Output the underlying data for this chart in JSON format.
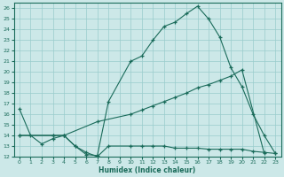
{
  "xlabel": "Humidex (Indice chaleur)",
  "bg_color": "#cce8e8",
  "line_color": "#1a6b5a",
  "grid_color": "#99cccc",
  "xlim": [
    -0.5,
    23.5
  ],
  "ylim": [
    12,
    26.5
  ],
  "xticks": [
    0,
    1,
    2,
    3,
    4,
    5,
    6,
    7,
    8,
    9,
    10,
    11,
    12,
    13,
    14,
    15,
    16,
    17,
    18,
    19,
    20,
    21,
    22,
    23
  ],
  "yticks": [
    12,
    13,
    14,
    15,
    16,
    17,
    18,
    19,
    20,
    21,
    22,
    23,
    24,
    25,
    26
  ],
  "line1_x": [
    0,
    1,
    2,
    3,
    4,
    5,
    6,
    7,
    8,
    10,
    11,
    12,
    13,
    14,
    15,
    16,
    17,
    18,
    19,
    20,
    21,
    22,
    23
  ],
  "line1_y": [
    16.5,
    14.0,
    13.2,
    13.7,
    14.0,
    13.0,
    12.2,
    12.1,
    17.2,
    21.0,
    21.5,
    23.0,
    24.3,
    24.7,
    25.5,
    26.2,
    25.0,
    23.3,
    20.4,
    18.6,
    16.0,
    14.0,
    12.3
  ],
  "line2_x": [
    0,
    3,
    4,
    7,
    10,
    11,
    12,
    13,
    14,
    15,
    16,
    17,
    18,
    19,
    20,
    22
  ],
  "line2_y": [
    14.0,
    14.0,
    14.0,
    15.3,
    16.0,
    16.4,
    16.8,
    17.2,
    17.6,
    18.0,
    18.5,
    18.8,
    19.2,
    19.6,
    20.2,
    12.3
  ],
  "line3_x": [
    0,
    3,
    4,
    5,
    6,
    7,
    8,
    10,
    11,
    12,
    13,
    14,
    15,
    16,
    17,
    18,
    19,
    20,
    21,
    22,
    23
  ],
  "line3_y": [
    14.0,
    14.0,
    14.0,
    13.0,
    12.4,
    12.0,
    13.0,
    13.0,
    13.0,
    13.0,
    13.0,
    12.8,
    12.8,
    12.8,
    12.7,
    12.7,
    12.7,
    12.7,
    12.5,
    12.4,
    12.3
  ]
}
